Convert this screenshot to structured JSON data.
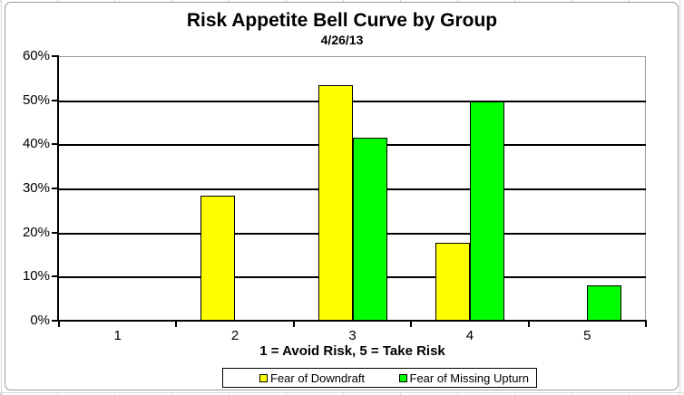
{
  "chart_data": {
    "type": "bar",
    "title": "Risk Appetite Bell Curve by Group",
    "subtitle": "4/26/13",
    "categories": [
      "1",
      "2",
      "3",
      "4",
      "5"
    ],
    "series": [
      {
        "name": "Fear of Downdraft",
        "color": "#FFFF00",
        "values": [
          0,
          28.6,
          53.6,
          17.9,
          0
        ]
      },
      {
        "name": "Fear of Missing Upturn",
        "color": "#00FF00",
        "values": [
          0,
          0,
          41.7,
          50.0,
          8.3
        ]
      }
    ],
    "xlabel": "1 = Avoid Risk, 5 = Take Risk",
    "ylabel": "",
    "ylim": [
      0,
      60
    ],
    "ytick_labels": [
      "0%",
      "10%",
      "20%",
      "30%",
      "40%",
      "50%",
      "60%"
    ],
    "grid": true,
    "gridline_color": "#000000",
    "plot_border_color": "#9a9a9a",
    "legend_position": "bottom"
  }
}
